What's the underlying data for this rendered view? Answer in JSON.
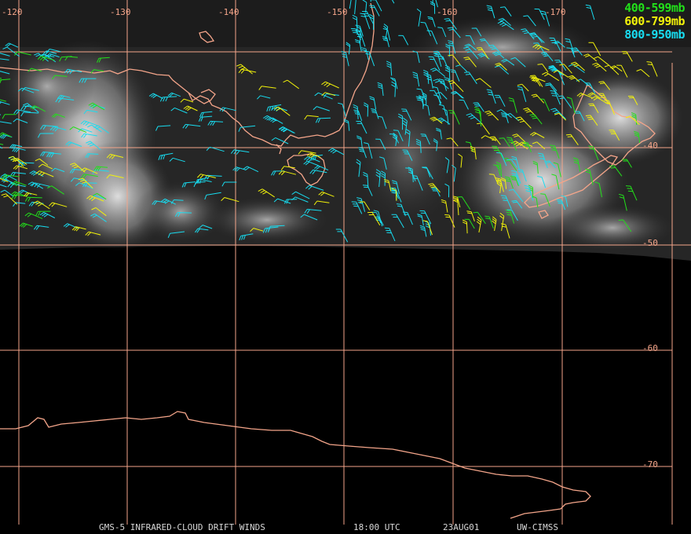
{
  "colors": {
    "grid": "#f4a58a",
    "coast": "#f4a58a",
    "band_400_599": "#22e01a",
    "band_600_799": "#f2f20a",
    "band_800_950": "#18dcf0",
    "background": "#000000",
    "footer_text": "#d8d8d8"
  },
  "legend": [
    {
      "label": "400-599mb",
      "color_key": "band_400_599"
    },
    {
      "label": "600-799mb",
      "color_key": "band_600_799"
    },
    {
      "label": "800-950mb",
      "color_key": "band_800_950"
    }
  ],
  "longitude_labels": [
    "-120",
    "-130",
    "-140",
    "-150",
    "-160",
    "-170"
  ],
  "latitude_labels": [
    "-40",
    "-50",
    "-60",
    "-70"
  ],
  "footer": {
    "product": "GMS-5 INFRARED-CLOUD DRIFT WINDS",
    "time": "18:00 UTC",
    "date": "23AUG01",
    "source": "UW-CIMSS"
  }
}
